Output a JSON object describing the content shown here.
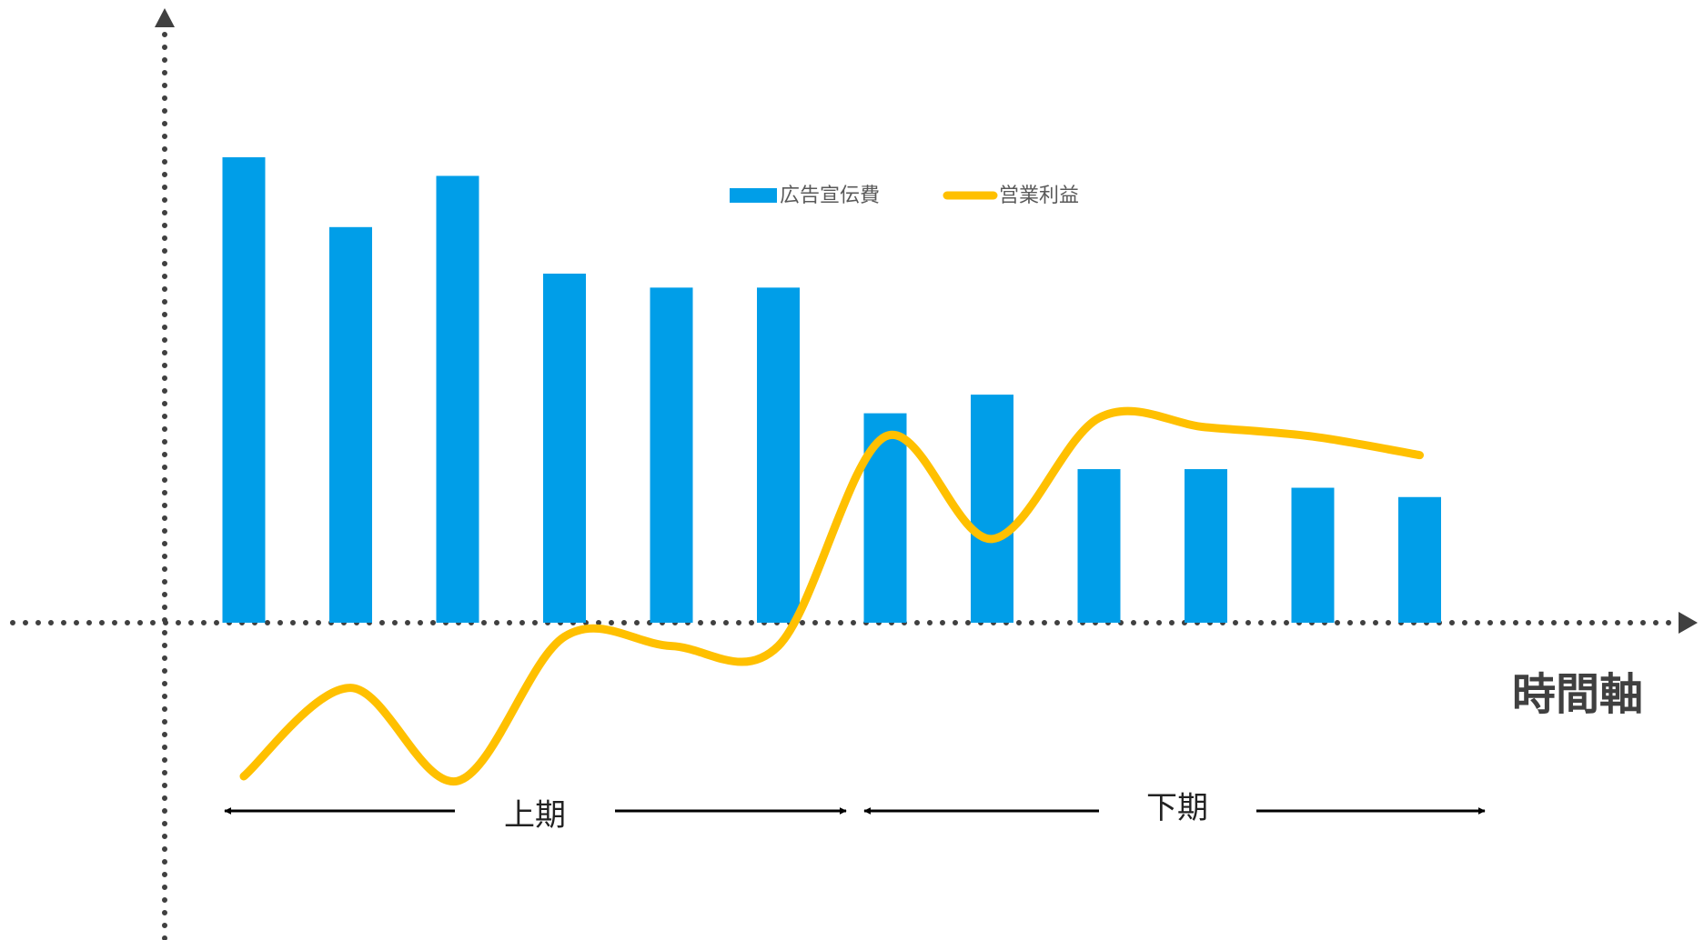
{
  "chart_data": {
    "type": "bar",
    "categories": [
      "",
      "",
      "",
      "",
      "",
      "",
      "",
      "",
      "",
      "",
      "",
      ""
    ],
    "series": [
      {
        "name": "広告宣伝費",
        "kind": "bar",
        "color": "#009EE8",
        "values": [
          100,
          85,
          96,
          75,
          72,
          72,
          45,
          49,
          33,
          33,
          29,
          27
        ]
      },
      {
        "name": "営業利益",
        "kind": "line",
        "smooth": true,
        "color": "#FFC000",
        "values": [
          -33,
          -14,
          -34,
          -3,
          -5,
          -5,
          40,
          18,
          44,
          42,
          40,
          36
        ]
      }
    ],
    "ylim": [
      -70,
      140
    ],
    "x_axis_title": "時間軸",
    "axis_style": "dotted, with arrows",
    "legend_position": "top-center",
    "grid": false,
    "annotations": [
      {
        "label": "上期",
        "span": [
          1,
          6
        ]
      },
      {
        "label": "下期",
        "span": [
          7,
          12
        ]
      }
    ]
  }
}
